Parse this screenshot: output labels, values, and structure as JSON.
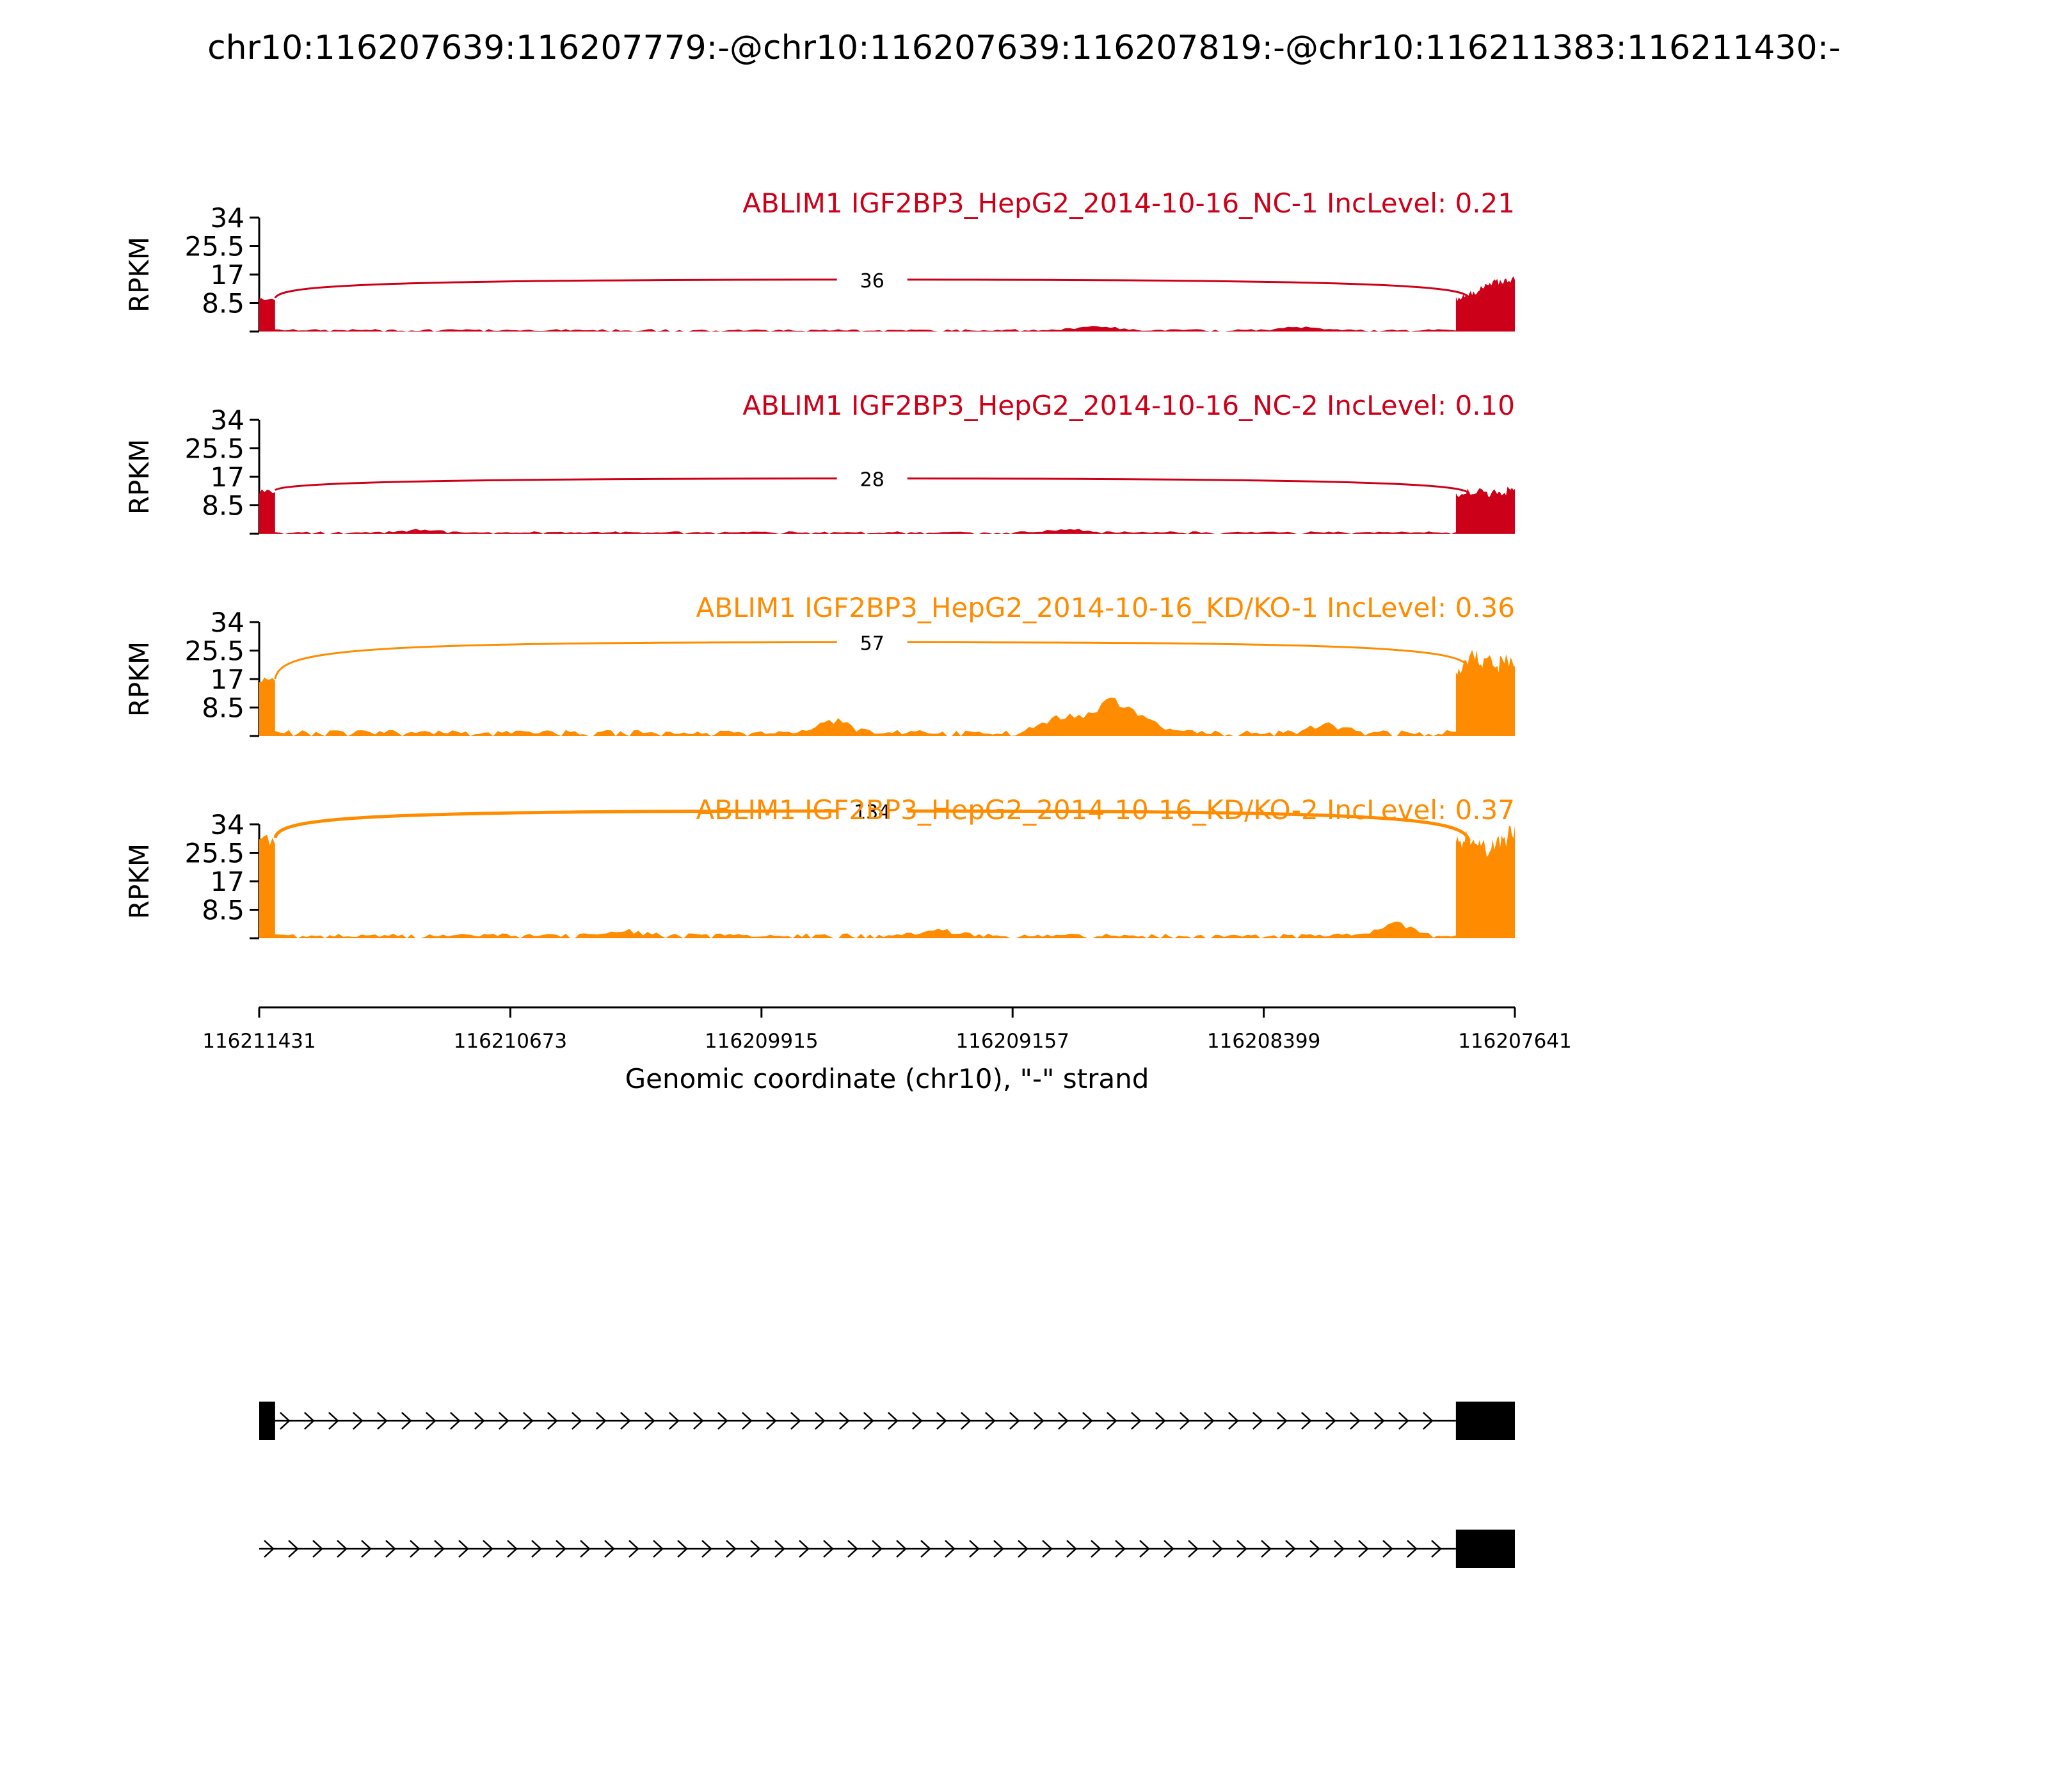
{
  "figure": {
    "title": "chr10:116207639:116207779:-@chr10:116207639:116207819:-@chr10:116211383:116211430:-"
  },
  "colors": {
    "nc": "#cc0018",
    "kd": "#ff8c00",
    "axis": "#000000"
  },
  "chart_data": {
    "type": "area",
    "description_of_axes": "sashimi plot",
    "xlabel": "Genomic coordinate (chr10), \"-\" strand",
    "ylabel": "RPKM",
    "xlim": [
      116211431,
      116207641
    ],
    "x_ticks": [
      "116211431",
      "116210673",
      "116209915",
      "116209157",
      "116208399",
      "116207641"
    ],
    "ylim": [
      0,
      34
    ],
    "y_ticks": [
      "8.5",
      "17",
      "25.5",
      "34"
    ],
    "exon_left": [
      116211431,
      116211383
    ],
    "exon_right": [
      116207819,
      116207641
    ],
    "tracks": [
      {
        "name": "ABLIM1 IGF2BP3_HepG2_2014-10-16_NC-1 IncLevel: 0.21",
        "color_key": "nc",
        "junction": {
          "from": 116211383,
          "to": 116207779,
          "reads": "36",
          "peak": 15.5
        },
        "left_exon_level": 10,
        "right_exon_levels": [
          10,
          11,
          12,
          13,
          14,
          15,
          15.5,
          16
        ],
        "intron_level": 0.6,
        "intron_bumps": [
          {
            "at": 116208910,
            "height": 1.2
          },
          {
            "at": 116208300,
            "height": 1.0
          }
        ]
      },
      {
        "name": "ABLIM1 IGF2BP3_HepG2_2014-10-16_NC-2 IncLevel: 0.10",
        "color_key": "nc",
        "junction": {
          "from": 116211383,
          "to": 116207779,
          "reads": "28",
          "peak": 16.5
        },
        "left_exon_level": 13,
        "right_exon_levels": [
          12,
          13,
          12.5,
          13,
          12,
          13,
          12.5,
          13.5
        ],
        "intron_level": 0.6,
        "intron_bumps": [
          {
            "at": 116209000,
            "height": 1.0
          },
          {
            "at": 116210950,
            "height": 0.8
          }
        ]
      },
      {
        "name": "ABLIM1 IGF2BP3_HepG2_2014-10-16_KD/KO-1 IncLevel: 0.36",
        "color_key": "kd",
        "junction": {
          "from": 116211383,
          "to": 116207779,
          "reads": "57",
          "peak": 28
        },
        "left_exon_level": 17,
        "right_exon_levels": [
          20,
          23,
          25,
          22,
          25,
          21,
          24,
          23
        ],
        "intron_level": 1.5,
        "intron_bumps": [
          {
            "at": 116209697,
            "height": 3.5
          },
          {
            "at": 116209012,
            "height": 4.5
          },
          {
            "at": 116208868,
            "height": 9.0
          },
          {
            "at": 116208754,
            "height": 3.5
          },
          {
            "at": 116208212,
            "height": 2.5
          }
        ]
      },
      {
        "name": "ABLIM1 IGF2BP3_HepG2_2014-10-16_KD/KO-2 IncLevel: 0.37",
        "color_key": "kd",
        "junction": {
          "from": 116211383,
          "to": 116207779,
          "reads": "134",
          "peak": 38
        },
        "left_exon_level": 30,
        "right_exon_levels": [
          29,
          31,
          28,
          30,
          27,
          29,
          30,
          32
        ],
        "intron_level": 1.2,
        "intron_bumps": [
          {
            "at": 116208009,
            "height": 3.5
          },
          {
            "at": 116210326,
            "height": 1.5
          },
          {
            "at": 116209380,
            "height": 1.5
          }
        ]
      }
    ]
  },
  "isoforms": [
    {
      "exons": [
        [
          116211431,
          116211383
        ],
        [
          116207819,
          116207641
        ]
      ]
    },
    {
      "exons": [
        [
          116207819,
          116207641
        ]
      ]
    }
  ]
}
